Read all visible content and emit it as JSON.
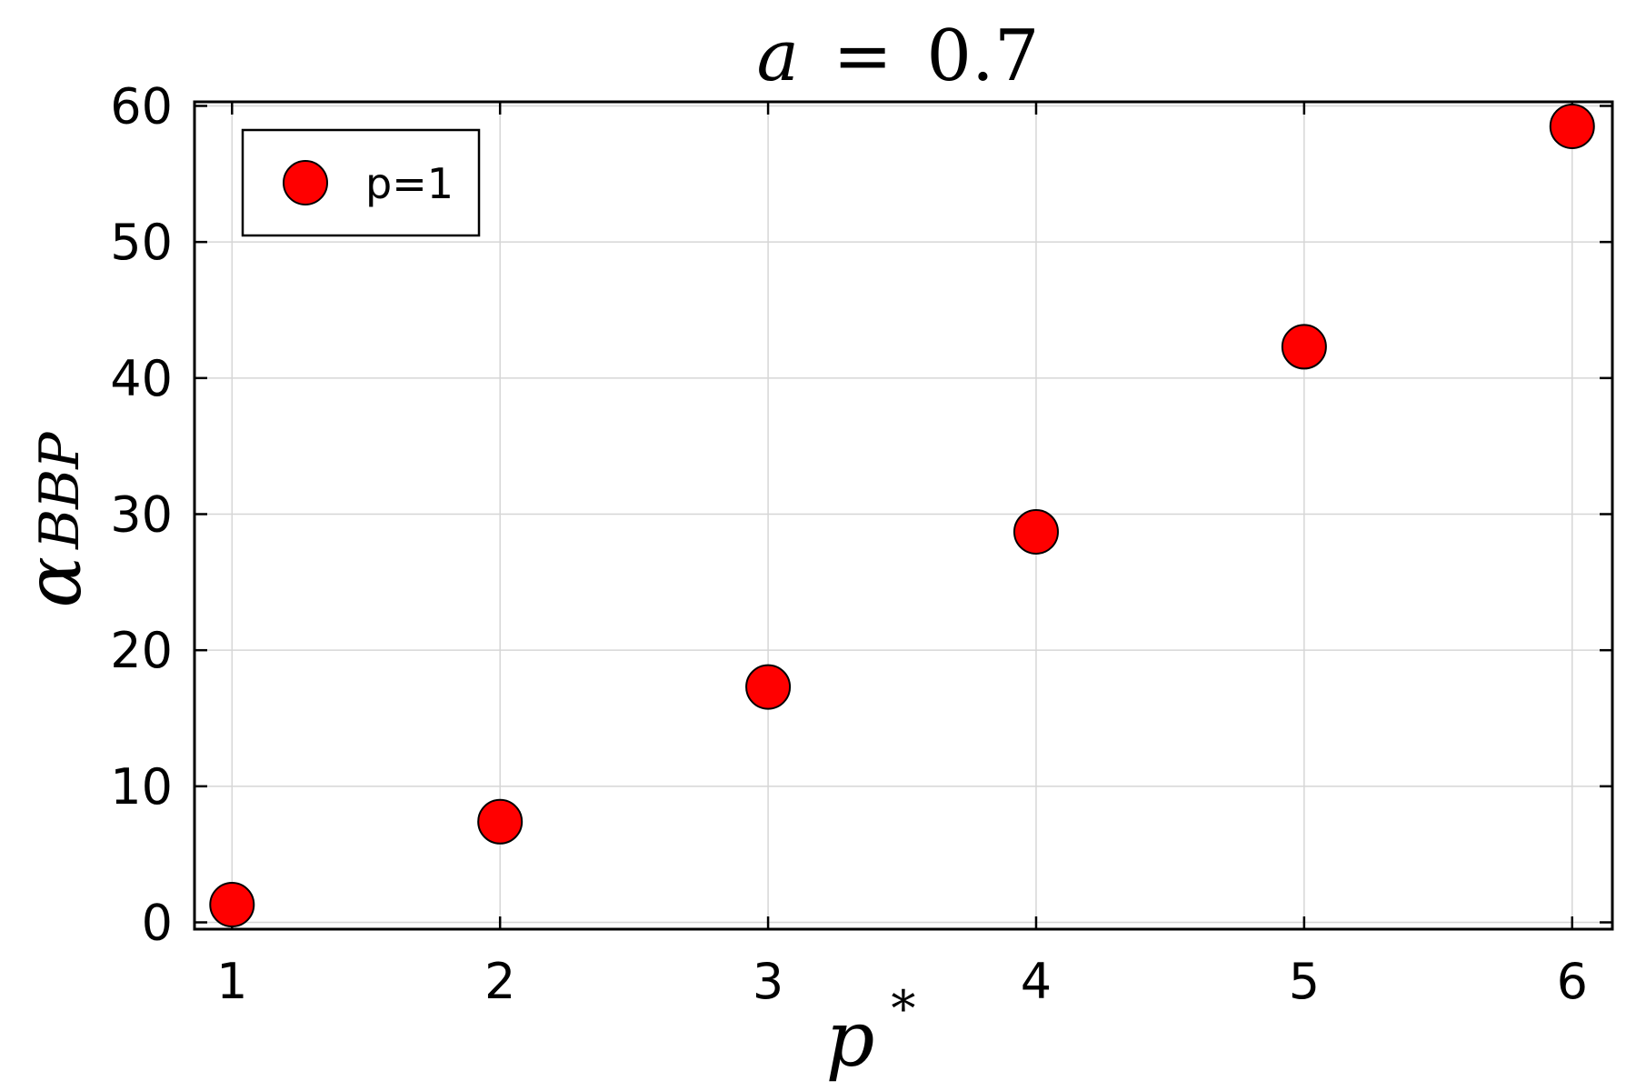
{
  "chart_data": {
    "type": "scatter",
    "title": {
      "var": "a",
      "eq": "=",
      "num": "0.7"
    },
    "xlabel": {
      "base": "p",
      "sup": "*"
    },
    "ylabel": {
      "base": "α",
      "sub": "BBP"
    },
    "xlim": [
      0.86,
      6.15
    ],
    "ylim": [
      -0.5,
      60.3
    ],
    "xticks": [
      1,
      2,
      3,
      4,
      5,
      6
    ],
    "yticks": [
      0,
      10,
      20,
      30,
      40,
      50,
      60
    ],
    "grid": true,
    "legend_position": "top-left",
    "series": [
      {
        "name": "p=1",
        "color": "#ff0000",
        "edge_color": "#000000",
        "marker": "circle",
        "x": [
          1,
          2,
          3,
          4,
          5,
          6
        ],
        "y": [
          1.3,
          7.4,
          17.3,
          28.7,
          42.3,
          58.5
        ]
      }
    ]
  }
}
